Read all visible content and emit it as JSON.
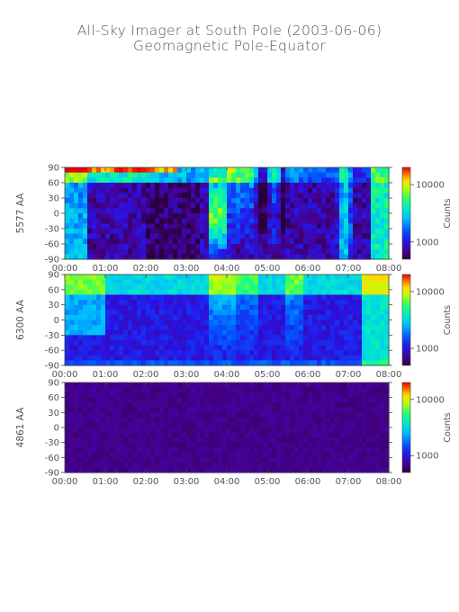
{
  "title_lines": [
    "All-Sky Imager at South Pole (2003-06-06)",
    "Geomagnetic Pole-Equator"
  ],
  "chart_data": [
    {
      "type": "heatmap",
      "panel": "top",
      "ylabel": "5577 AA",
      "colorbar_label": "Counts",
      "colorbar_ticks": [
        {
          "label": "10000",
          "value": 10000
        },
        {
          "label": "1000",
          "value": 1000
        }
      ],
      "colorbar_range": [
        500,
        20000
      ],
      "colorbar_scale": "log",
      "y_ticks": [
        "90",
        "60",
        "30",
        "0",
        "-30",
        "-60",
        "-90"
      ],
      "x_ticks": [
        "00:00",
        "01:00",
        "02:00",
        "03:00",
        "04:00",
        "05:00",
        "06:00",
        "07:00",
        "08:00"
      ],
      "xlim": [
        "00:00",
        "08:00"
      ],
      "ylim": [
        -90,
        90
      ]
    },
    {
      "type": "heatmap",
      "panel": "middle",
      "ylabel": "6300 AA",
      "colorbar_label": "Counts",
      "colorbar_ticks": [
        {
          "label": "10000",
          "value": 10000
        },
        {
          "label": "1000",
          "value": 1000
        }
      ],
      "colorbar_range": [
        500,
        20000
      ],
      "colorbar_scale": "log",
      "y_ticks": [
        "90",
        "60",
        "30",
        "0",
        "-30",
        "-60",
        "-90"
      ],
      "x_ticks": [
        "00:00",
        "01:00",
        "02:00",
        "03:00",
        "04:00",
        "05:00",
        "06:00",
        "07:00",
        "08:00"
      ],
      "xlim": [
        "00:00",
        "08:00"
      ],
      "ylim": [
        -90,
        90
      ]
    },
    {
      "type": "heatmap",
      "panel": "bottom",
      "ylabel": "4861 AA",
      "colorbar_label": "Counts",
      "colorbar_ticks": [
        {
          "label": "10000",
          "value": 10000
        },
        {
          "label": "1000",
          "value": 1000
        }
      ],
      "colorbar_range": [
        500,
        20000
      ],
      "colorbar_scale": "log",
      "y_ticks": [
        "90",
        "60",
        "30",
        "0",
        "-30",
        "-60",
        "-90"
      ],
      "x_ticks": [
        "00:00",
        "01:00",
        "02:00",
        "03:00",
        "04:00",
        "05:00",
        "06:00",
        "07:00",
        "08:00"
      ],
      "xlim": [
        "00:00",
        "08:00"
      ],
      "ylim": [
        -90,
        90
      ]
    }
  ]
}
